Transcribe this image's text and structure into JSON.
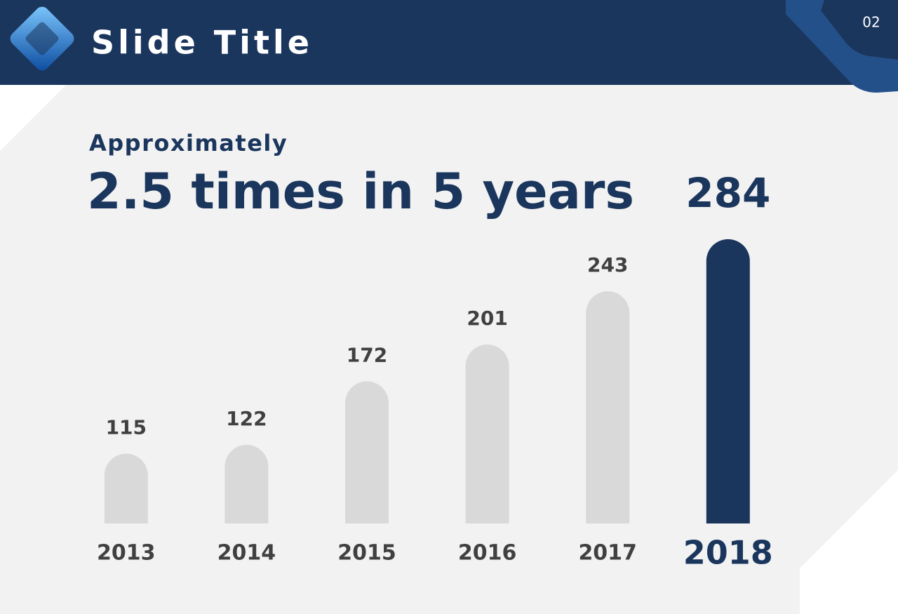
{
  "slide": {
    "title": "Slide Title",
    "page_number": "02",
    "kicker": "Approximately",
    "headline": "2.5 times in 5 years"
  },
  "chart_data": {
    "type": "bar",
    "categories": [
      "2013",
      "2014",
      "2015",
      "2016",
      "2017",
      "2018"
    ],
    "values": [
      115,
      122,
      172,
      201,
      243,
      284
    ],
    "colors": [
      "#d9d9d9",
      "#d9d9d9",
      "#d9d9d9",
      "#d9d9d9",
      "#d9d9d9",
      "#1b365d"
    ],
    "ylim": [
      60,
      290
    ]
  }
}
